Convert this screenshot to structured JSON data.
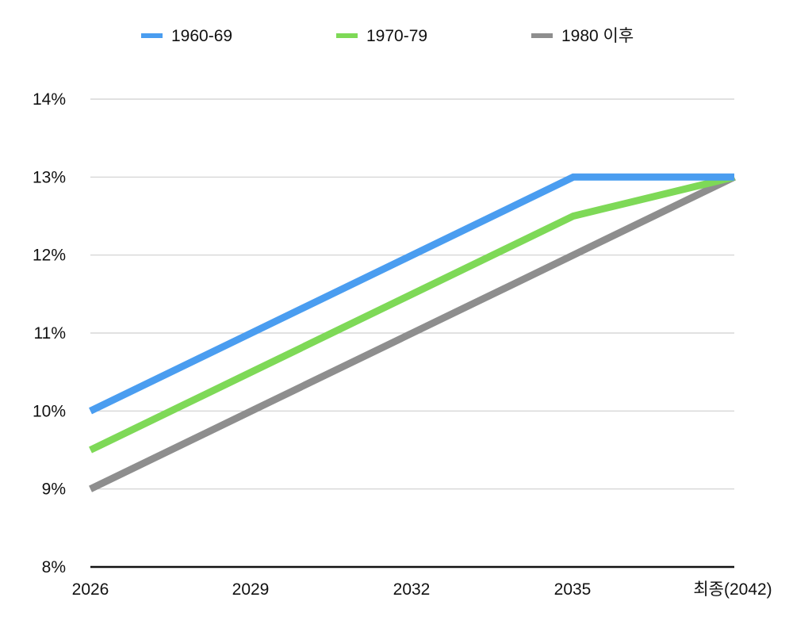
{
  "chart_data": {
    "type": "line",
    "title": "",
    "xlabel": "",
    "ylabel": "",
    "categories": [
      "2026",
      "2029",
      "2032",
      "2035",
      "최종(2042)"
    ],
    "series": [
      {
        "name": "1960-69",
        "color": "#4a9df0",
        "values": [
          10,
          11,
          12,
          13,
          13
        ]
      },
      {
        "name": "1970-79",
        "color": "#7ed957",
        "values": [
          9.5,
          10.5,
          11.5,
          12.5,
          13
        ]
      },
      {
        "name": "1980 이후",
        "color": "#8e8e8e",
        "values": [
          9,
          10,
          11,
          12,
          13
        ]
      }
    ],
    "ylim": [
      8,
      14
    ],
    "y_ticks": [
      8,
      9,
      10,
      11,
      12,
      13,
      14
    ],
    "y_tick_labels": [
      "8%",
      "9%",
      "10%",
      "11%",
      "12%",
      "13%",
      "14%"
    ],
    "grid": true,
    "legend_position": "top"
  }
}
